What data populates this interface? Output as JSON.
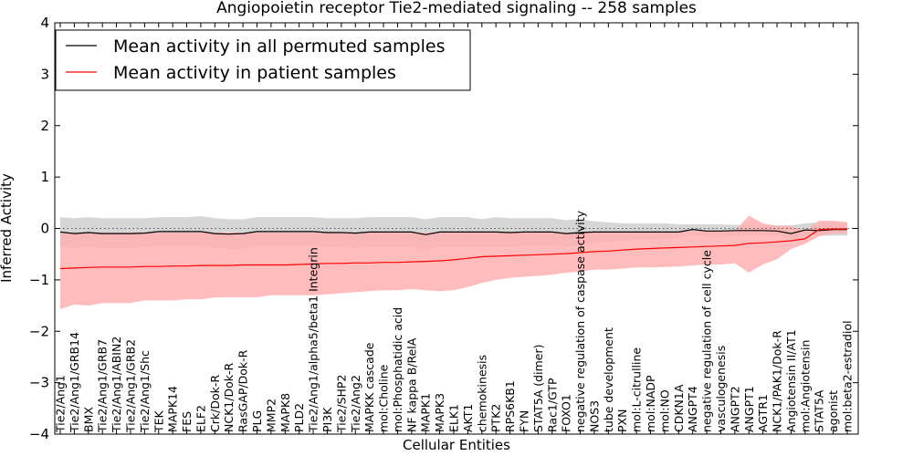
{
  "chart_data": {
    "type": "line",
    "title": "Angiopoietin receptor Tie2-mediated signaling -- 258 samples",
    "xlabel": "Cellular Entities",
    "ylabel": "Inferred Activity",
    "ylim": [
      -4,
      4
    ],
    "yticks": [
      "4",
      "3",
      "2",
      "1",
      "0",
      "−1",
      "−2",
      "−3",
      "−4"
    ],
    "ytick_values": [
      4,
      3,
      2,
      1,
      0,
      -1,
      -2,
      -3,
      -4
    ],
    "legend_position": "top-left",
    "categories": [
      "Tie2/Ang1",
      "Tie2/Ang1/GRB14",
      "BMX",
      "Tie2/Ang1/GRB7",
      "Tie2/Ang1/ABIN2",
      "Tie2/Ang1/GRB2",
      "Tie2/Ang1/Shc",
      "TEK",
      "MAPK14",
      "FES",
      "ELF2",
      "Crk/Dok-R",
      "NCK1/Dok-R",
      "RasGAP/Dok-R",
      "PLG",
      "MMP2",
      "MAPK8",
      "PLD2",
      "Tie2/Ang1/alpha5/beta1 Integrin",
      "PI3K",
      "Tie2/SHP2",
      "Tie2/Ang2",
      "MAPKK cascade",
      "mol:Choline",
      "mol:Phosphatidic acid",
      "NF kappa B/RelA",
      "MAPK1",
      "MAPK3",
      "ELK1",
      "AKT1",
      "chemokinesis",
      "PTK2",
      "RPS6KB1",
      "FYN",
      "STAT5A (dimer)",
      "Rac1/GTP",
      "FOXO1",
      "negative regulation of caspase activity",
      "NOS3",
      "tube development",
      "PXN",
      "mol:L-citrulline",
      "mol:NADP",
      "mol:NO",
      "CDKN1A",
      "ANGPT4",
      "negative regulation of cell cycle",
      "vasculogenesis",
      "ANGPT2",
      "ANGPT1",
      "AGTR1",
      "NCK1/PAK1/Dok-R",
      "Angiotensin II/AT1",
      "mol:Angiotensin",
      "STAT5A",
      "agonist",
      "mol:beta2-estradiol"
    ],
    "series": [
      {
        "name": "Mean activity in all permuted samples",
        "color": "#000000",
        "band_color": "#c8c8c8",
        "values": [
          -0.07,
          -0.1,
          -0.08,
          -0.1,
          -0.1,
          -0.1,
          -0.09,
          -0.06,
          -0.06,
          -0.06,
          -0.06,
          -0.1,
          -0.11,
          -0.1,
          -0.06,
          -0.06,
          -0.06,
          -0.06,
          -0.06,
          -0.08,
          -0.08,
          -0.09,
          -0.07,
          -0.07,
          -0.07,
          -0.07,
          -0.12,
          -0.07,
          -0.07,
          -0.07,
          -0.07,
          -0.07,
          -0.08,
          -0.07,
          -0.07,
          -0.07,
          -0.1,
          -0.08,
          -0.07,
          -0.07,
          -0.07,
          -0.07,
          -0.07,
          -0.07,
          -0.07,
          -0.02,
          -0.05,
          -0.05,
          -0.04,
          -0.04,
          -0.04,
          -0.05,
          -0.1,
          -0.03,
          -0.04,
          -0.02,
          -0.02
        ],
        "upper": [
          0.22,
          0.2,
          0.22,
          0.2,
          0.2,
          0.2,
          0.2,
          0.22,
          0.22,
          0.22,
          0.24,
          0.2,
          0.18,
          0.18,
          0.22,
          0.22,
          0.22,
          0.22,
          0.22,
          0.2,
          0.2,
          0.2,
          0.22,
          0.22,
          0.22,
          0.22,
          0.18,
          0.22,
          0.22,
          0.22,
          0.18,
          0.22,
          0.2,
          0.2,
          0.2,
          0.2,
          0.16,
          0.18,
          0.14,
          0.12,
          0.1,
          0.1,
          0.1,
          0.1,
          0.08,
          0.08,
          0.08,
          0.08,
          0.07,
          0.07,
          0.06,
          0.06,
          0.06,
          0.1,
          0.12,
          0.12,
          0.12
        ],
        "lower": [
          -0.35,
          -0.38,
          -0.36,
          -0.38,
          -0.38,
          -0.38,
          -0.36,
          -0.34,
          -0.34,
          -0.34,
          -0.35,
          -0.38,
          -0.4,
          -0.4,
          -0.34,
          -0.34,
          -0.34,
          -0.34,
          -0.34,
          -0.36,
          -0.36,
          -0.38,
          -0.35,
          -0.35,
          -0.35,
          -0.35,
          -0.42,
          -0.35,
          -0.35,
          -0.35,
          -0.35,
          -0.35,
          -0.36,
          -0.34,
          -0.34,
          -0.34,
          -0.36,
          -0.32,
          -0.28,
          -0.26,
          -0.24,
          -0.22,
          -0.22,
          -0.2,
          -0.18,
          -0.12,
          -0.16,
          -0.16,
          -0.14,
          -0.14,
          -0.14,
          -0.14,
          -0.2,
          -0.12,
          -0.14,
          -0.14,
          -0.14
        ]
      },
      {
        "name": "Mean activity in patient samples",
        "color": "#ff0000",
        "band_color": "#ffb0b0",
        "values": [
          -0.78,
          -0.77,
          -0.76,
          -0.75,
          -0.75,
          -0.75,
          -0.74,
          -0.74,
          -0.73,
          -0.73,
          -0.72,
          -0.72,
          -0.72,
          -0.71,
          -0.71,
          -0.71,
          -0.71,
          -0.7,
          -0.69,
          -0.68,
          -0.68,
          -0.67,
          -0.67,
          -0.66,
          -0.66,
          -0.65,
          -0.64,
          -0.63,
          -0.61,
          -0.58,
          -0.55,
          -0.54,
          -0.53,
          -0.52,
          -0.51,
          -0.5,
          -0.49,
          -0.47,
          -0.45,
          -0.44,
          -0.42,
          -0.4,
          -0.39,
          -0.38,
          -0.37,
          -0.36,
          -0.35,
          -0.34,
          -0.33,
          -0.29,
          -0.28,
          -0.26,
          -0.24,
          -0.2,
          -0.02,
          -0.01,
          -0.01
        ],
        "upper": [
          -0.1,
          -0.08,
          -0.08,
          -0.08,
          -0.08,
          -0.08,
          -0.08,
          -0.08,
          -0.08,
          -0.08,
          -0.08,
          -0.08,
          -0.08,
          -0.08,
          -0.08,
          -0.08,
          -0.08,
          -0.08,
          -0.08,
          -0.08,
          -0.08,
          -0.08,
          -0.08,
          -0.08,
          -0.08,
          -0.08,
          -0.08,
          -0.08,
          -0.08,
          -0.08,
          -0.08,
          -0.08,
          -0.08,
          -0.08,
          -0.08,
          -0.08,
          -0.08,
          -0.08,
          -0.08,
          -0.08,
          -0.08,
          -0.08,
          -0.08,
          -0.08,
          -0.08,
          -0.05,
          -0.05,
          -0.05,
          -0.05,
          0.25,
          0.1,
          0.05,
          0.05,
          -0.05,
          0.15,
          0.15,
          0.12
        ],
        "lower": [
          -1.57,
          -1.48,
          -1.5,
          -1.45,
          -1.45,
          -1.45,
          -1.4,
          -1.4,
          -1.4,
          -1.38,
          -1.38,
          -1.34,
          -1.34,
          -1.34,
          -1.34,
          -1.3,
          -1.3,
          -1.3,
          -1.3,
          -1.28,
          -1.26,
          -1.24,
          -1.22,
          -1.2,
          -1.2,
          -1.18,
          -1.2,
          -1.22,
          -1.2,
          -1.14,
          -1.06,
          -1.0,
          -0.96,
          -0.94,
          -0.92,
          -0.9,
          -0.86,
          -0.84,
          -0.8,
          -0.8,
          -0.78,
          -0.76,
          -0.76,
          -0.75,
          -0.74,
          -0.72,
          -0.7,
          -0.7,
          -0.68,
          -0.86,
          -0.7,
          -0.6,
          -0.4,
          -0.3,
          -0.15,
          -0.1,
          -0.1
        ]
      }
    ],
    "reference_line": {
      "y": 0,
      "style": "dotted",
      "color": "#555555"
    }
  }
}
